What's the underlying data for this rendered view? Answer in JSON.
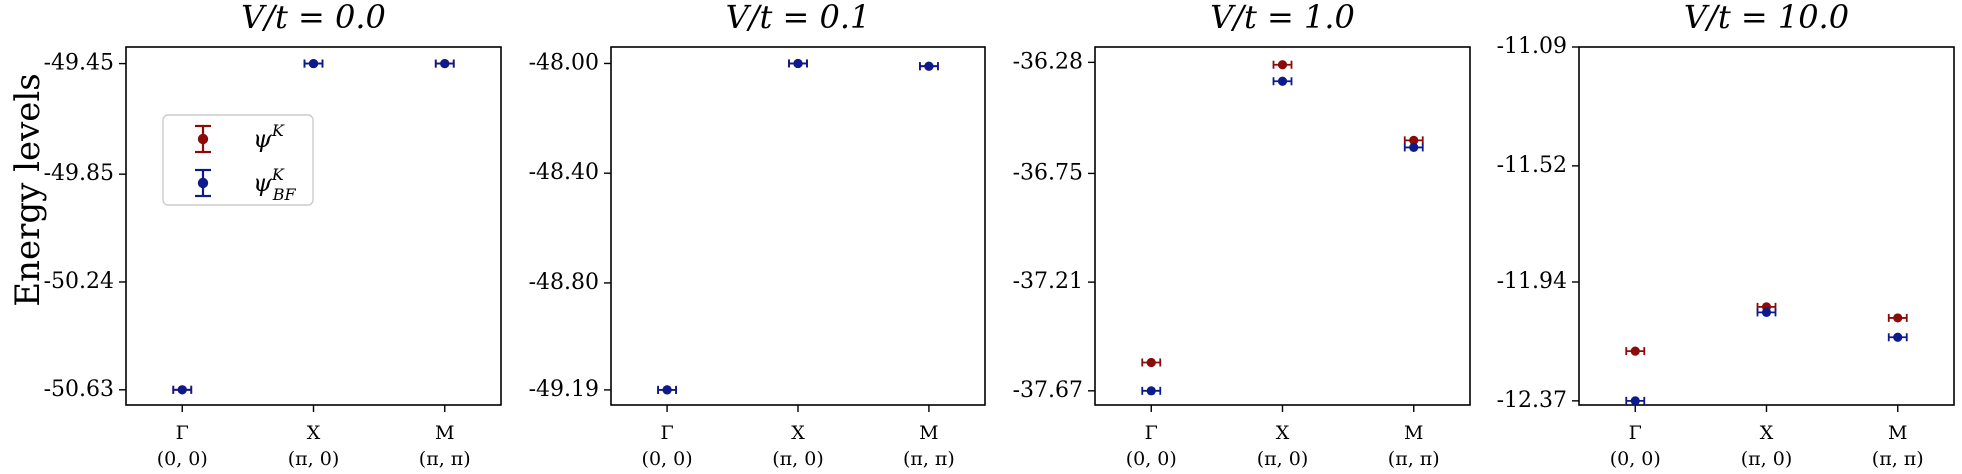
{
  "colors": {
    "psiK": "#8b0a0a",
    "psiBF": "#0c1a8c"
  },
  "legend": {
    "placement": "upper-left of first panel",
    "entries": [
      {
        "series": "psiK",
        "base": "ψ",
        "sup": "K",
        "sub": ""
      },
      {
        "series": "psiBF",
        "base": "ψ",
        "sup": "K",
        "sub": "BF"
      }
    ]
  },
  "chart_data": [
    {
      "type": "scatter",
      "title": "V/t = 0.0",
      "ylabel": "Energy levels",
      "categories": [
        "Γ",
        "X",
        "M"
      ],
      "category_coords": [
        "(0, 0)",
        "(π, 0)",
        "(π, π)"
      ],
      "yticks": [
        "-49.45",
        "-49.85",
        "-50.24",
        "-50.63"
      ],
      "ylim": [
        -50.685,
        -49.39
      ],
      "grid": false,
      "series": [
        {
          "key": "psiK",
          "values": [
            -50.63,
            -49.45,
            -49.45
          ]
        },
        {
          "key": "psiBF",
          "values": [
            -50.63,
            -49.45,
            -49.45
          ]
        }
      ]
    },
    {
      "type": "scatter",
      "title": "V/t = 0.1",
      "ylabel": "",
      "categories": [
        "Γ",
        "X",
        "M"
      ],
      "category_coords": [
        "(0, 0)",
        "(π, 0)",
        "(π, π)"
      ],
      "yticks": [
        "-48.00",
        "-48.40",
        "-48.80",
        "-49.19"
      ],
      "ylim": [
        -49.245,
        -47.94
      ],
      "grid": false,
      "series": [
        {
          "key": "psiK",
          "values": [
            -49.19,
            -48.0,
            -48.01
          ]
        },
        {
          "key": "psiBF",
          "values": [
            -49.19,
            -48.0,
            -48.01
          ]
        }
      ]
    },
    {
      "type": "scatter",
      "title": "V/t = 1.0",
      "ylabel": "",
      "categories": [
        "Γ",
        "X",
        "M"
      ],
      "category_coords": [
        "(0, 0)",
        "(π, 0)",
        "(π, π)"
      ],
      "yticks": [
        "-36.28",
        "-36.75",
        "-37.21",
        "-37.67"
      ],
      "ylim": [
        -37.73,
        -36.215
      ],
      "grid": false,
      "series": [
        {
          "key": "psiK",
          "values": [
            -37.55,
            -36.29,
            -36.61
          ]
        },
        {
          "key": "psiBF",
          "values": [
            -37.67,
            -36.36,
            -36.64
          ]
        }
      ]
    },
    {
      "type": "scatter",
      "title": "V/t = 10.0",
      "ylabel": "",
      "categories": [
        "Γ",
        "X",
        "M"
      ],
      "category_coords": [
        "(0, 0)",
        "(π, 0)",
        "(π, π)"
      ],
      "yticks": [
        "-11.09",
        "-11.52",
        "-11.94",
        "-12.37"
      ],
      "ylim": [
        -12.385,
        -11.09
      ],
      "grid": false,
      "series": [
        {
          "key": "psiK",
          "values": [
            -12.19,
            -12.03,
            -12.07
          ]
        },
        {
          "key": "psiBF",
          "values": [
            -12.37,
            -12.05,
            -12.14
          ]
        }
      ]
    }
  ]
}
